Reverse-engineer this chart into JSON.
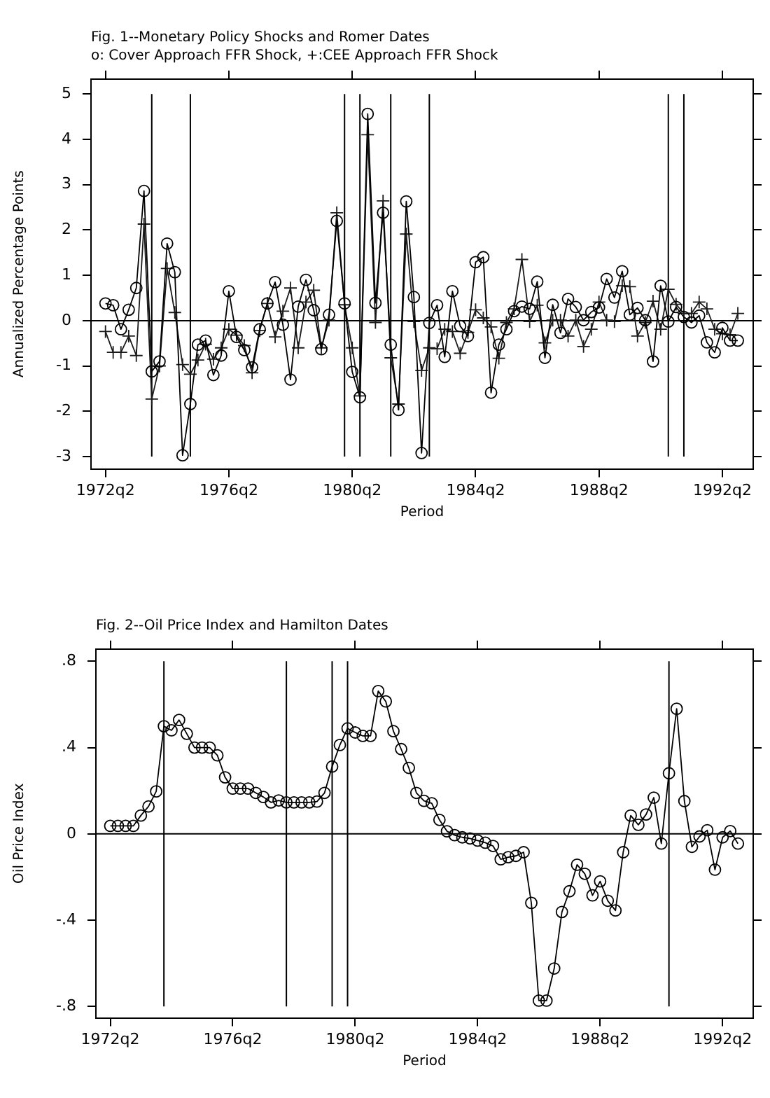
{
  "chart_data": [
    {
      "type": "line",
      "title": "Fig. 1--Monetary Policy Shocks and Romer Dates",
      "subtitle": "o: Cover Approach FFR Shock, +:CEE Approach FFR Shock",
      "xlabel": "Period",
      "ylabel": "Annualized Percentage Points",
      "x": [
        "1972-04",
        "1972-07",
        "1972-10",
        "1973-01",
        "1973-04",
        "1973-07",
        "1973-10",
        "1974-01",
        "1974-04",
        "1974-07",
        "1974-10",
        "1975-01",
        "1975-04",
        "1975-07",
        "1975-10",
        "1976-01",
        "1976-04",
        "1976-07",
        "1976-10",
        "1977-01",
        "1977-04",
        "1977-07",
        "1977-10",
        "1978-01",
        "1978-04",
        "1978-07",
        "1978-10",
        "1979-01",
        "1979-04",
        "1979-07",
        "1979-10",
        "1980-01",
        "1980-04",
        "1980-07",
        "1980-10",
        "1981-01",
        "1981-04",
        "1981-07",
        "1981-10",
        "1982-01",
        "1982-04",
        "1982-07",
        "1982-10",
        "1983-01",
        "1983-04",
        "1983-07",
        "1983-10",
        "1984-01",
        "1984-04",
        "1984-07",
        "1984-10",
        "1985-01",
        "1985-04",
        "1985-07",
        "1985-10",
        "1986-01",
        "1986-04",
        "1986-07",
        "1986-10",
        "1987-01",
        "1987-04",
        "1987-07",
        "1987-10",
        "1988-01",
        "1988-04",
        "1988-07",
        "1988-10",
        "1989-01",
        "1989-04",
        "1989-07",
        "1989-10",
        "1990-01",
        "1990-04",
        "1990-07",
        "1990-10",
        "1991-01",
        "1991-04",
        "1991-07",
        "1991-10",
        "1992-01",
        "1992-04",
        "1992-07",
        "1992-10"
      ],
      "series": [
        {
          "color": "#000000",
          "marker": "circle",
          "values": [
            0.38,
            0.34,
            -0.19,
            0.24,
            0.72,
            2.86,
            -1.12,
            -0.9,
            1.7,
            1.07,
            -2.97,
            -1.84,
            -0.53,
            -0.44,
            -1.2,
            -0.77,
            0.65,
            -0.36,
            -0.65,
            -1.03,
            -0.19,
            0.38,
            0.85,
            -0.09,
            -1.3,
            0.31,
            0.9,
            0.23,
            -0.63,
            0.13,
            2.2,
            0.38,
            -1.13,
            -1.69,
            4.56,
            0.39,
            2.38,
            -0.53,
            -1.97,
            2.63,
            0.52,
            -2.92,
            -0.05,
            0.34,
            -0.8,
            0.65,
            -0.12,
            -0.34,
            1.29,
            1.4,
            -1.59,
            -0.53,
            -0.19,
            0.21,
            0.31,
            0.26,
            0.86,
            -0.82,
            0.35,
            -0.27,
            0.48,
            0.3,
            0.01,
            0.19,
            0.29,
            0.92,
            0.51,
            1.09,
            0.13,
            0.28,
            0.01,
            -0.9,
            0.77,
            -0.02,
            0.3,
            0.08,
            -0.04,
            0.11,
            -0.48,
            -0.7,
            -0.16,
            -0.44,
            -0.44
          ]
        },
        {
          "color": "#1a1a1a",
          "marker": "cross",
          "values": [
            -0.24,
            -0.7,
            -0.7,
            -0.34,
            -0.77,
            2.13,
            -1.73,
            -1,
            1.15,
            0.18,
            -0.97,
            -1.18,
            -0.87,
            -0.52,
            -0.85,
            -0.6,
            -0.19,
            -0.32,
            -0.55,
            -1.15,
            -0.22,
            0.38,
            -0.36,
            0.21,
            0.72,
            -0.6,
            0.41,
            0.67,
            -0.6,
            0.01,
            2.38,
            0.35,
            -0.6,
            -1.66,
            4.1,
            -0.04,
            2.64,
            -0.82,
            -1.84,
            1.91,
            -0.02,
            -1.1,
            -0.6,
            -0.62,
            -0.19,
            -0.24,
            -0.72,
            -0.26,
            0.24,
            0.06,
            -0.14,
            -0.83,
            -0.04,
            0.26,
            1.35,
            -0.02,
            0.34,
            -0.49,
            0.01,
            0.01,
            -0.34,
            0.01,
            -0.57,
            -0.19,
            0.41,
            0.01,
            -0.02,
            0.77,
            0.75,
            -0.34,
            -0.04,
            0.43,
            -0.19,
            0.69,
            0.36,
            0.16,
            0.16,
            0.41,
            0.26,
            -0.19,
            -0.29,
            -0.31,
            0.16
          ]
        }
      ],
      "xlim": [
        "1971-10-12",
        "1993-04-01"
      ],
      "xticks": [
        {
          "value": "1972-04",
          "label": "1972q2"
        },
        {
          "value": "1976-04",
          "label": "1976q2"
        },
        {
          "value": "1980-04",
          "label": "1980q2"
        },
        {
          "value": "1984-04",
          "label": "1984q2"
        },
        {
          "value": "1988-04",
          "label": "1988q2"
        },
        {
          "value": "1992-04",
          "label": "1992q2"
        }
      ],
      "ylim": [
        -3.27,
        5.33
      ],
      "yticks": [
        -3,
        -2,
        -1,
        0,
        1,
        2,
        3,
        4,
        5
      ],
      "ref_lines": [
        {
          "axis": "y",
          "value": 0
        },
        {
          "axis": "x",
          "value": "1973-10"
        },
        {
          "axis": "x",
          "value": "1975-01"
        },
        {
          "axis": "x",
          "value": "1980-01"
        },
        {
          "axis": "x",
          "value": "1980-07"
        },
        {
          "axis": "x",
          "value": "1981-07"
        },
        {
          "axis": "x",
          "value": "1982-10"
        },
        {
          "axis": "x",
          "value": "1990-07"
        },
        {
          "axis": "x",
          "value": "1991-01"
        }
      ]
    },
    {
      "type": "line",
      "title": "Fig. 2--Oil Price Index and Hamilton Dates",
      "xlabel": "Period",
      "ylabel": "Oil Price Index",
      "x": [
        "1972-04",
        "1972-07",
        "1972-10",
        "1973-01",
        "1973-04",
        "1973-07",
        "1973-10",
        "1974-01",
        "1974-04",
        "1974-07",
        "1974-10",
        "1975-01",
        "1975-04",
        "1975-07",
        "1975-10",
        "1976-01",
        "1976-04",
        "1976-07",
        "1976-10",
        "1977-01",
        "1977-04",
        "1977-07",
        "1977-10",
        "1978-01",
        "1978-04",
        "1978-07",
        "1978-10",
        "1979-01",
        "1979-04",
        "1979-07",
        "1979-10",
        "1980-01",
        "1980-04",
        "1980-07",
        "1980-10",
        "1981-01",
        "1981-04",
        "1981-07",
        "1981-10",
        "1982-01",
        "1982-04",
        "1982-07",
        "1982-10",
        "1983-01",
        "1983-04",
        "1983-07",
        "1983-10",
        "1984-01",
        "1984-04",
        "1984-07",
        "1984-10",
        "1985-01",
        "1985-04",
        "1985-07",
        "1985-10",
        "1986-01",
        "1986-04",
        "1986-07",
        "1986-10",
        "1987-01",
        "1987-04",
        "1987-07",
        "1987-10",
        "1988-01",
        "1988-04",
        "1988-07",
        "1988-10",
        "1989-01",
        "1989-04",
        "1989-07",
        "1989-10",
        "1990-01",
        "1990-04",
        "1990-07",
        "1990-10",
        "1991-01",
        "1991-04",
        "1991-07",
        "1991-10",
        "1992-01",
        "1992-04",
        "1992-07",
        "1992-10"
      ],
      "series": [
        {
          "color": "#000000",
          "marker": "circle",
          "values": [
            0.037,
            0.037,
            0.037,
            0.037,
            0.085,
            0.127,
            0.197,
            0.499,
            0.48,
            0.528,
            0.464,
            0.4,
            0.4,
            0.4,
            0.364,
            0.262,
            0.21,
            0.21,
            0.21,
            0.19,
            0.171,
            0.146,
            0.155,
            0.146,
            0.146,
            0.146,
            0.146,
            0.15,
            0.19,
            0.312,
            0.412,
            0.489,
            0.47,
            0.454,
            0.454,
            0.662,
            0.614,
            0.476,
            0.393,
            0.306,
            0.19,
            0.153,
            0.142,
            0.065,
            0.012,
            -0.006,
            -0.016,
            -0.021,
            -0.031,
            -0.041,
            -0.056,
            -0.118,
            -0.108,
            -0.102,
            -0.085,
            -0.32,
            -0.773,
            -0.773,
            -0.624,
            -0.362,
            -0.266,
            -0.143,
            -0.185,
            -0.285,
            -0.22,
            -0.31,
            -0.355,
            -0.085,
            0.085,
            0.042,
            0.09,
            0.168,
            -0.045,
            0.281,
            0.58,
            0.152,
            -0.06,
            -0.012,
            0.017,
            -0.166,
            -0.016,
            0.013,
            -0.045
          ]
        }
      ],
      "xlim": [
        "1971-10-12",
        "1993-04-01"
      ],
      "xticks": [
        {
          "value": "1972-04",
          "label": "1972q2"
        },
        {
          "value": "1976-04",
          "label": "1976q2"
        },
        {
          "value": "1980-04",
          "label": "1980q2"
        },
        {
          "value": "1984-04",
          "label": "1984q2"
        },
        {
          "value": "1988-04",
          "label": "1988q2"
        },
        {
          "value": "1992-04",
          "label": "1992q2"
        }
      ],
      "ylim": [
        -0.853,
        0.857
      ],
      "yticks": [
        {
          "value": -0.8,
          "label": "-.8"
        },
        {
          "value": -0.4,
          "label": "-.4"
        },
        0,
        {
          "value": 0.4,
          "label": ".4"
        },
        {
          "value": 0.8,
          "label": ".8"
        }
      ],
      "ref_lines": [
        {
          "axis": "y",
          "value": 0
        },
        {
          "axis": "x",
          "value": "1974-01"
        },
        {
          "axis": "x",
          "value": "1978-01"
        },
        {
          "axis": "x",
          "value": "1979-07"
        },
        {
          "axis": "x",
          "value": "1980-01"
        },
        {
          "axis": "x",
          "value": "1990-07"
        }
      ]
    }
  ]
}
